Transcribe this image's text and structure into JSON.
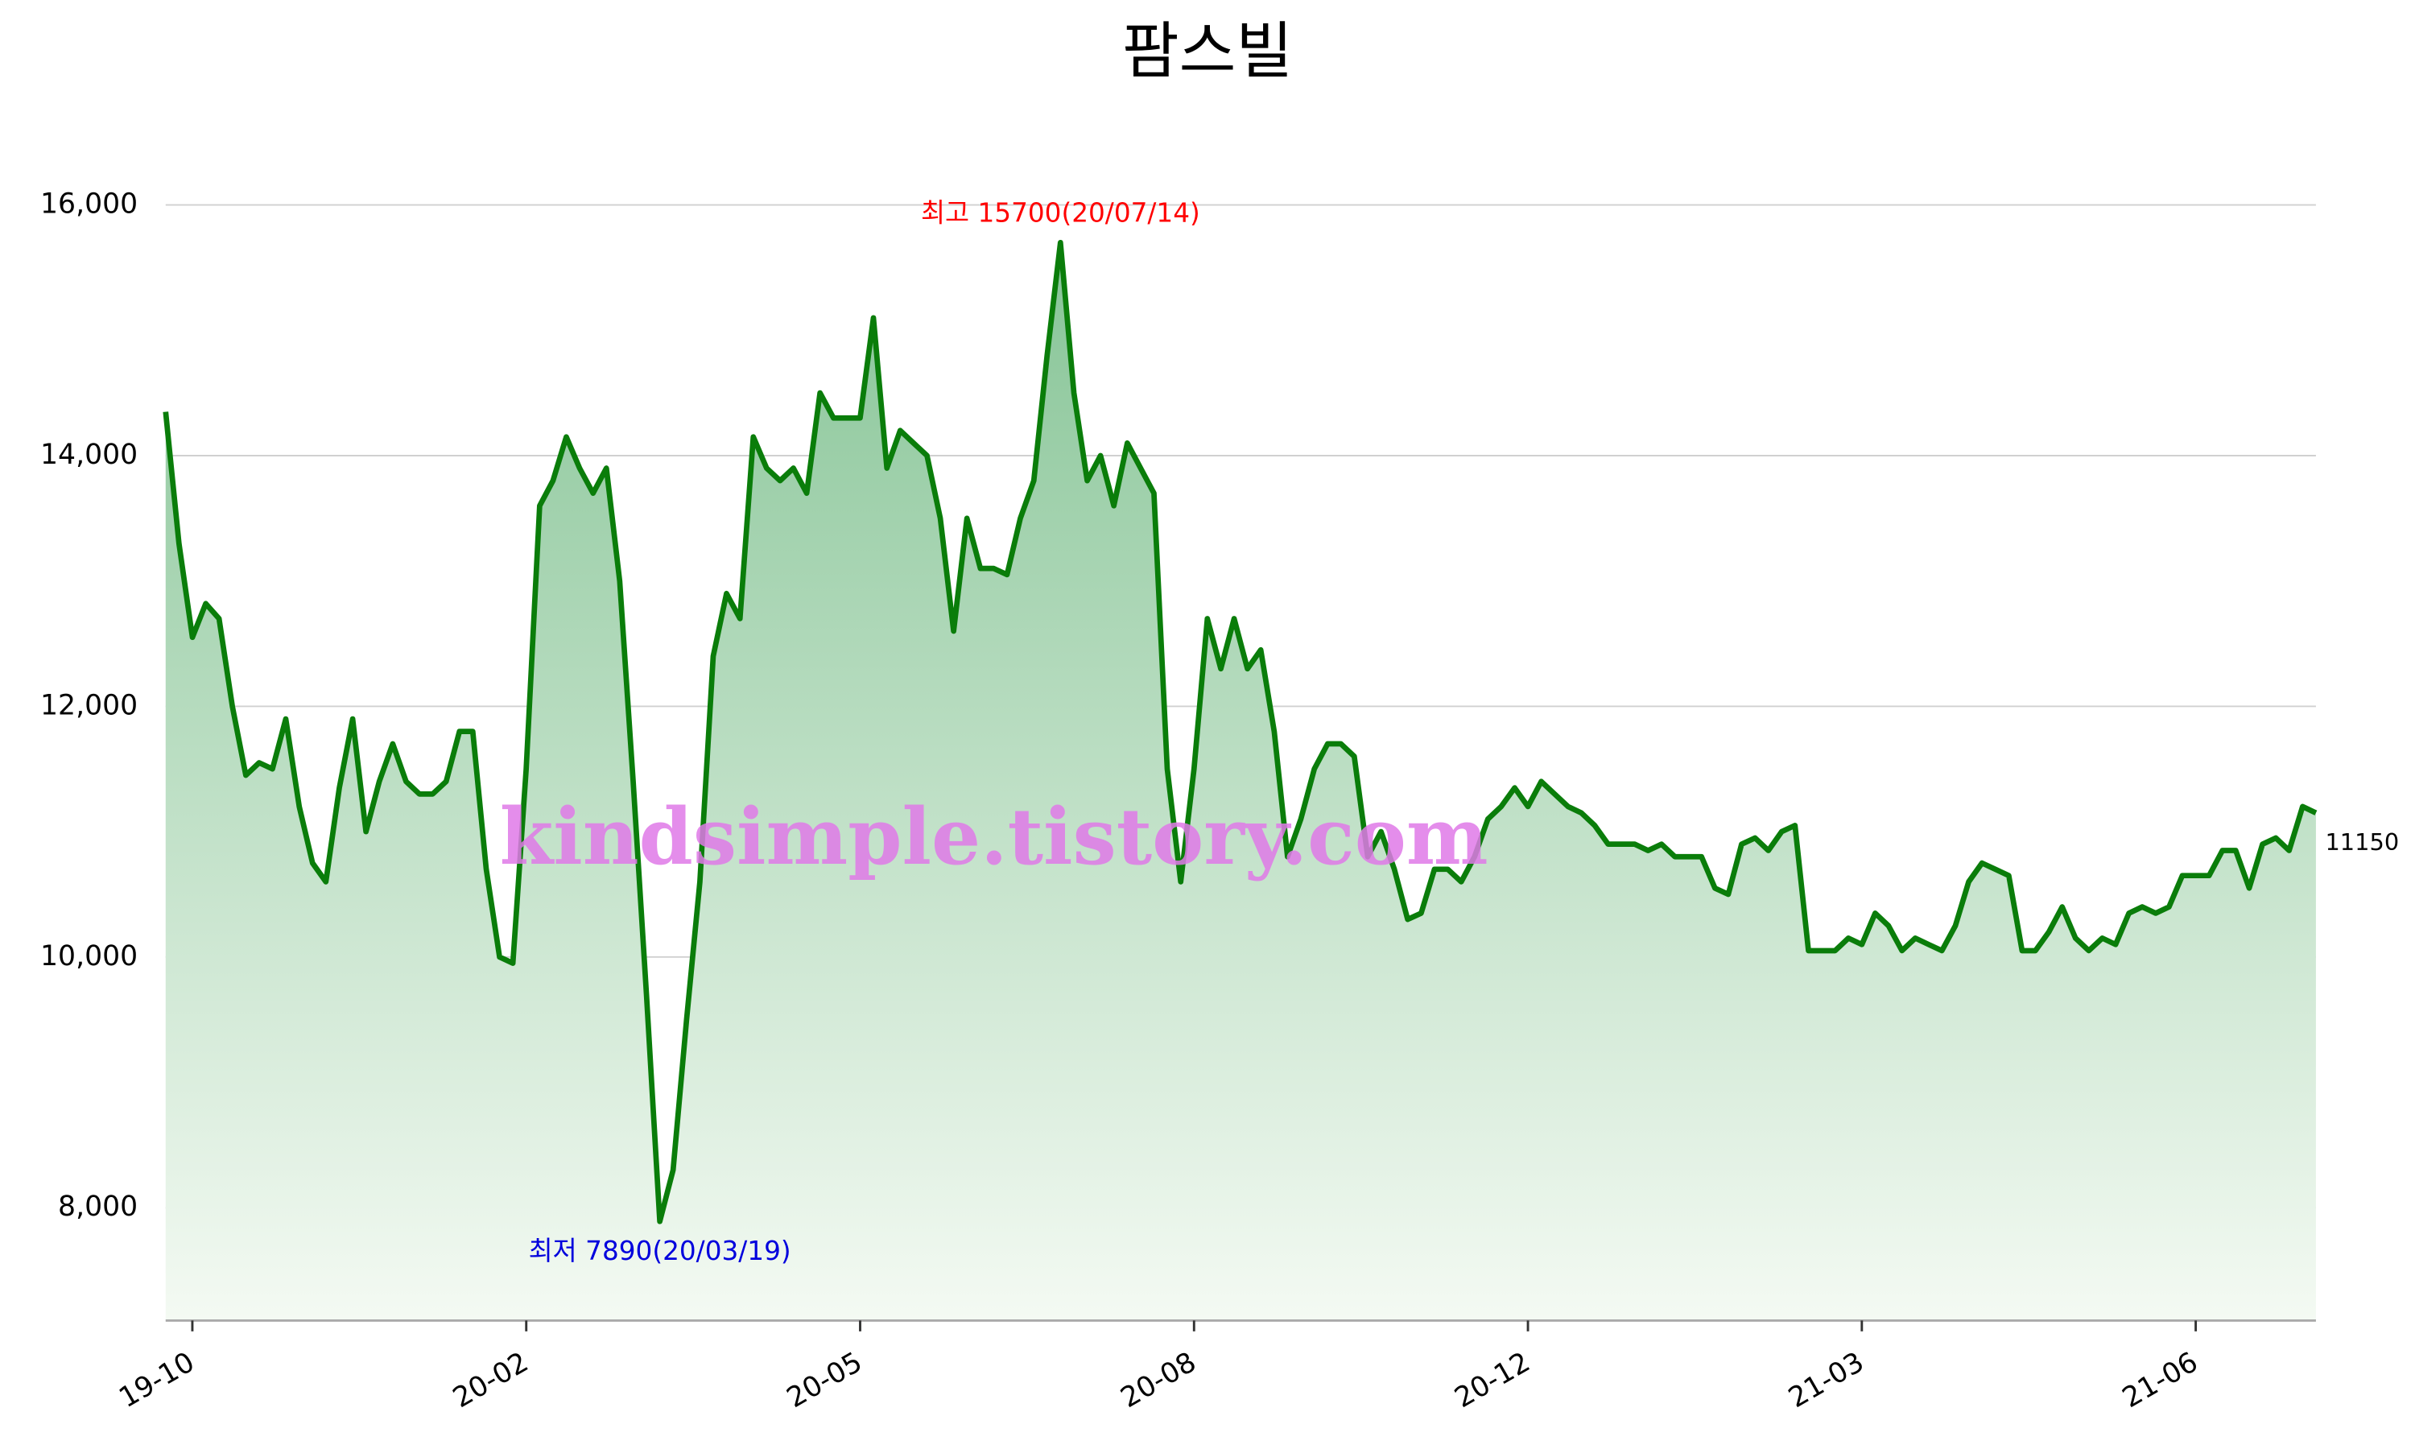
{
  "chart_data": {
    "type": "line",
    "title": "팜스빌",
    "watermark": "kindsimple.tistory.com",
    "color": "#0a7d0a",
    "grid": true,
    "values": [
      14350,
      13300,
      12550,
      12820,
      12700,
      12000,
      11450,
      11550,
      11500,
      11900,
      11200,
      10750,
      10600,
      11350,
      11900,
      11000,
      11400,
      11700,
      11400,
      11300,
      11300,
      11400,
      11800,
      11800,
      10700,
      10000,
      9950,
      11500,
      13600,
      13800,
      14150,
      13900,
      13700,
      13900,
      13000,
      11400,
      9700,
      7890,
      8300,
      9500,
      10600,
      12400,
      12900,
      12700,
      14150,
      13900,
      13800,
      13900,
      13700,
      14500,
      14300,
      14300,
      14300,
      15100,
      13900,
      14200,
      14100,
      14000,
      13500,
      12600,
      13500,
      13100,
      13100,
      13050,
      13500,
      13800,
      14800,
      15700,
      14500,
      13800,
      14000,
      13600,
      14100,
      13900,
      13700,
      11500,
      10600,
      11500,
      12700,
      12300,
      12700,
      12300,
      12450,
      11800,
      10800,
      11100,
      11500,
      11700,
      11700,
      11600,
      10800,
      11000,
      10700,
      10300,
      10350,
      10700,
      10700,
      10600,
      10800,
      11100,
      11200,
      11350,
      11200,
      11400,
      11300,
      11200,
      11150,
      11050,
      10900,
      10900,
      10900,
      10850,
      10900,
      10800,
      10800,
      10800,
      10550,
      10500,
      10900,
      10950,
      10850,
      11000,
      11050,
      10050,
      10050,
      10050,
      10150,
      10100,
      10350,
      10250,
      10050,
      10150,
      10100,
      10050,
      10250,
      10600,
      10750,
      10700,
      10650,
      10050,
      10050,
      10200,
      10400,
      10150,
      10050,
      10150,
      10100,
      10350,
      10400,
      10350,
      10400,
      10650,
      10650,
      10650,
      10850,
      10850,
      10550,
      10900,
      10950,
      10850,
      11200,
      11150
    ],
    "xlim": [
      0,
      161
    ],
    "xticks": [
      {
        "value": 2,
        "label": "19-10"
      },
      {
        "value": 27,
        "label": "20-02"
      },
      {
        "value": 52,
        "label": "20-05"
      },
      {
        "value": 77,
        "label": "20-08"
      },
      {
        "value": 102,
        "label": "20-12"
      },
      {
        "value": 127,
        "label": "21-03"
      },
      {
        "value": 152,
        "label": "21-06"
      }
    ],
    "ylim": [
      7100,
      16400
    ],
    "yticks": [
      {
        "value": 8000,
        "label": "8,000"
      },
      {
        "value": 10000,
        "label": "10,000"
      },
      {
        "value": 12000,
        "label": "12,000"
      },
      {
        "value": 14000,
        "label": "14,000"
      },
      {
        "value": 16000,
        "label": "16,000"
      }
    ],
    "annotations": [
      {
        "text": "최고 15700(20/07/14)",
        "color": "#ff0000",
        "x": 67,
        "y": 15700
      },
      {
        "text": "최저 7890(20/03/19)",
        "color": "#0000dd",
        "x": 37,
        "y": 7890
      },
      {
        "text": "11150",
        "color": "#000000",
        "x": 161,
        "y": 11150
      }
    ]
  }
}
